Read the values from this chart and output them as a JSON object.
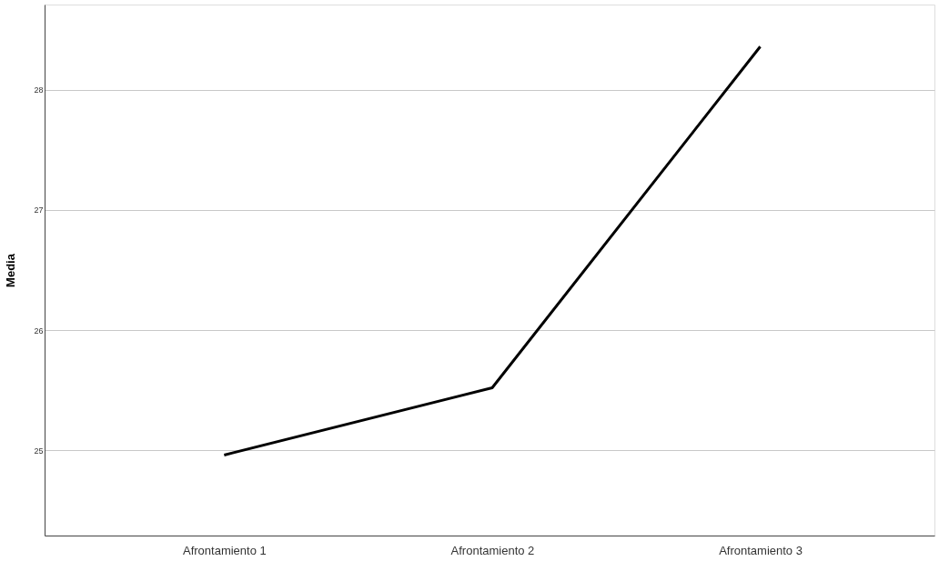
{
  "chart_data": {
    "type": "line",
    "ylabel": "Media",
    "categories": [
      "Afrontamiento 1",
      "Afrontamiento 2",
      "Afrontamiento 3"
    ],
    "series": [
      {
        "color": "#000000",
        "values": [
          24.96,
          25.52,
          28.36
        ]
      }
    ],
    "ylim": [
      24.29,
      28.71
    ],
    "yticks": [
      25,
      26,
      27,
      28
    ],
    "grid": "y",
    "marker": "none",
    "line_style": "solid",
    "legend": false
  }
}
